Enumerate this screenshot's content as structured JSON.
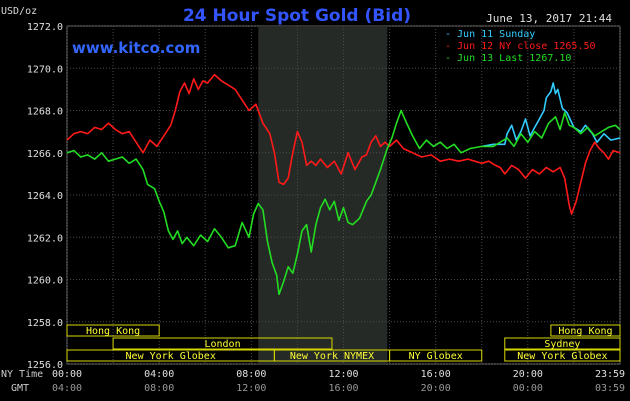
{
  "header": {
    "title": "24 Hour Spot Gold (Bid)",
    "unit": "USD/oz",
    "datetime": "June 13, 2017 21:44",
    "website": "www.kitco.com"
  },
  "legend": [
    {
      "label": "Jun 11 Sunday",
      "color": "#33ccff"
    },
    {
      "label": "Jun 12 NY close 1265.50",
      "color": "#ff1a1a"
    },
    {
      "label": "Jun 13 Last 1267.10",
      "color": "#22dd22"
    }
  ],
  "time_labels": {
    "ny_time_label": "NY Time",
    "gmt_label": "GMT"
  },
  "sessions": [
    {
      "name": "Hong Kong",
      "start": 0,
      "end": 4,
      "row": 0
    },
    {
      "name": "London",
      "start": 2,
      "end": 11.5,
      "row": 1
    },
    {
      "name": "New York Globex",
      "start": 0,
      "end": 9,
      "row": 2
    },
    {
      "name": "New York NYMEX",
      "start": 9,
      "end": 14,
      "row": 2
    },
    {
      "name": "NY Globex",
      "start": 14,
      "end": 18,
      "row": 2
    },
    {
      "name": "Hong Kong",
      "start": 21,
      "end": 24,
      "row": 0
    },
    {
      "name": "Sydney",
      "start": 19,
      "end": 24,
      "row": 1
    },
    {
      "name": "New York Globex",
      "start": 19,
      "end": 24,
      "row": 2
    }
  ],
  "chart_data": {
    "type": "line",
    "title": "24 Hour Spot Gold (Bid)",
    "ylabel": "USD/oz",
    "xlim": [
      0,
      24
    ],
    "ylim": [
      1256,
      1272
    ],
    "yticks": [
      1256,
      1258,
      1260,
      1262,
      1264,
      1266,
      1268,
      1270,
      1272
    ],
    "y_tick_labels": [
      "1256.0",
      "1258.0",
      "1260.0",
      "1262.0",
      "1264.0",
      "1266.0",
      "1268.0",
      "1270.0",
      "1272.0"
    ],
    "xticks": [
      0,
      4,
      8,
      12,
      16,
      20,
      24
    ],
    "x_tick_labels_ny": [
      "00:00",
      "04:00",
      "08:00",
      "12:00",
      "16:00",
      "20:00",
      "23:59"
    ],
    "x_tick_labels_gmt": [
      "04:00",
      "08:00",
      "12:00",
      "16:00",
      "20:00",
      "00:00",
      "03:59"
    ],
    "shaded_region": [
      8.3,
      13.9
    ],
    "grid": true,
    "series": [
      {
        "name": "Jun 11 Sunday",
        "color": "#33ccff",
        "points": [
          [
            18.0,
            1266.3
          ],
          [
            18.5,
            1266.4
          ],
          [
            19.0,
            1266.4
          ],
          [
            19.1,
            1266.9
          ],
          [
            19.3,
            1267.3
          ],
          [
            19.5,
            1266.6
          ],
          [
            19.7,
            1267.0
          ],
          [
            19.9,
            1267.6
          ],
          [
            20.1,
            1266.8
          ],
          [
            20.3,
            1267.2
          ],
          [
            20.5,
            1267.6
          ],
          [
            20.7,
            1268.0
          ],
          [
            20.8,
            1268.6
          ],
          [
            21.0,
            1268.9
          ],
          [
            21.1,
            1269.3
          ],
          [
            21.2,
            1268.8
          ],
          [
            21.3,
            1269.0
          ],
          [
            21.5,
            1268.1
          ],
          [
            21.7,
            1267.9
          ],
          [
            22.0,
            1267.2
          ],
          [
            22.3,
            1267.0
          ],
          [
            22.5,
            1267.3
          ],
          [
            22.8,
            1266.9
          ],
          [
            23.0,
            1266.5
          ],
          [
            23.3,
            1266.9
          ],
          [
            23.6,
            1266.6
          ],
          [
            24.0,
            1266.7
          ]
        ]
      },
      {
        "name": "Jun 12 NY close 1265.50",
        "color": "#ff1a1a",
        "points": [
          [
            0.0,
            1266.6
          ],
          [
            0.3,
            1266.9
          ],
          [
            0.6,
            1267.0
          ],
          [
            0.9,
            1266.9
          ],
          [
            1.2,
            1267.2
          ],
          [
            1.5,
            1267.1
          ],
          [
            1.8,
            1267.4
          ],
          [
            2.1,
            1267.1
          ],
          [
            2.4,
            1266.9
          ],
          [
            2.7,
            1267.0
          ],
          [
            3.0,
            1266.5
          ],
          [
            3.3,
            1266.0
          ],
          [
            3.6,
            1266.6
          ],
          [
            3.9,
            1266.3
          ],
          [
            4.2,
            1266.8
          ],
          [
            4.5,
            1267.3
          ],
          [
            4.7,
            1268.0
          ],
          [
            4.9,
            1268.9
          ],
          [
            5.1,
            1269.3
          ],
          [
            5.3,
            1268.8
          ],
          [
            5.5,
            1269.5
          ],
          [
            5.7,
            1269.0
          ],
          [
            5.9,
            1269.4
          ],
          [
            6.1,
            1269.3
          ],
          [
            6.4,
            1269.7
          ],
          [
            6.7,
            1269.4
          ],
          [
            7.0,
            1269.2
          ],
          [
            7.3,
            1269.0
          ],
          [
            7.6,
            1268.5
          ],
          [
            7.9,
            1268.0
          ],
          [
            8.2,
            1268.3
          ],
          [
            8.5,
            1267.4
          ],
          [
            8.8,
            1266.9
          ],
          [
            9.0,
            1266.0
          ],
          [
            9.2,
            1264.6
          ],
          [
            9.4,
            1264.5
          ],
          [
            9.6,
            1264.8
          ],
          [
            9.8,
            1266.0
          ],
          [
            10.0,
            1267.0
          ],
          [
            10.2,
            1266.5
          ],
          [
            10.4,
            1265.4
          ],
          [
            10.6,
            1265.6
          ],
          [
            10.8,
            1265.4
          ],
          [
            11.0,
            1265.7
          ],
          [
            11.3,
            1265.3
          ],
          [
            11.6,
            1265.6
          ],
          [
            11.9,
            1265.0
          ],
          [
            12.2,
            1266.0
          ],
          [
            12.5,
            1265.2
          ],
          [
            12.8,
            1265.8
          ],
          [
            13.0,
            1265.9
          ],
          [
            13.2,
            1266.5
          ],
          [
            13.4,
            1266.8
          ],
          [
            13.6,
            1266.3
          ],
          [
            13.8,
            1266.5
          ],
          [
            14.0,
            1266.3
          ],
          [
            14.3,
            1266.6
          ],
          [
            14.6,
            1266.2
          ],
          [
            15.0,
            1266.0
          ],
          [
            15.4,
            1265.8
          ],
          [
            15.8,
            1265.9
          ],
          [
            16.2,
            1265.6
          ],
          [
            16.6,
            1265.7
          ],
          [
            17.0,
            1265.6
          ],
          [
            17.4,
            1265.7
          ],
          [
            18.0,
            1265.5
          ],
          [
            18.3,
            1265.6
          ],
          [
            18.6,
            1265.4
          ],
          [
            18.8,
            1265.3
          ],
          [
            19.0,
            1265.0
          ],
          [
            19.3,
            1265.4
          ],
          [
            19.6,
            1265.2
          ],
          [
            19.9,
            1264.8
          ],
          [
            20.2,
            1265.2
          ],
          [
            20.5,
            1265.0
          ],
          [
            20.8,
            1265.3
          ],
          [
            21.1,
            1265.1
          ],
          [
            21.4,
            1265.3
          ],
          [
            21.6,
            1264.8
          ],
          [
            21.8,
            1263.5
          ],
          [
            21.9,
            1263.1
          ],
          [
            22.1,
            1263.7
          ],
          [
            22.3,
            1264.6
          ],
          [
            22.5,
            1265.5
          ],
          [
            22.7,
            1266.1
          ],
          [
            22.9,
            1266.5
          ],
          [
            23.1,
            1266.2
          ],
          [
            23.3,
            1266.0
          ],
          [
            23.5,
            1265.7
          ],
          [
            23.7,
            1266.1
          ],
          [
            24.0,
            1266.0
          ]
        ]
      },
      {
        "name": "Jun 13 Last 1267.10",
        "color": "#22dd22",
        "points": [
          [
            0.0,
            1266.0
          ],
          [
            0.3,
            1266.1
          ],
          [
            0.6,
            1265.8
          ],
          [
            0.9,
            1265.9
          ],
          [
            1.2,
            1265.7
          ],
          [
            1.5,
            1266.0
          ],
          [
            1.8,
            1265.6
          ],
          [
            2.1,
            1265.7
          ],
          [
            2.4,
            1265.8
          ],
          [
            2.7,
            1265.5
          ],
          [
            3.0,
            1265.7
          ],
          [
            3.3,
            1265.2
          ],
          [
            3.5,
            1264.5
          ],
          [
            3.8,
            1264.3
          ],
          [
            4.0,
            1263.7
          ],
          [
            4.2,
            1263.2
          ],
          [
            4.4,
            1262.3
          ],
          [
            4.6,
            1261.9
          ],
          [
            4.8,
            1262.3
          ],
          [
            5.0,
            1261.7
          ],
          [
            5.2,
            1262.0
          ],
          [
            5.5,
            1261.6
          ],
          [
            5.8,
            1262.1
          ],
          [
            6.1,
            1261.8
          ],
          [
            6.4,
            1262.4
          ],
          [
            6.7,
            1262.0
          ],
          [
            7.0,
            1261.5
          ],
          [
            7.3,
            1261.6
          ],
          [
            7.6,
            1262.7
          ],
          [
            7.9,
            1262.0
          ],
          [
            8.1,
            1263.1
          ],
          [
            8.3,
            1263.6
          ],
          [
            8.5,
            1263.3
          ],
          [
            8.7,
            1261.8
          ],
          [
            8.9,
            1260.8
          ],
          [
            9.1,
            1260.2
          ],
          [
            9.2,
            1259.3
          ],
          [
            9.4,
            1259.9
          ],
          [
            9.6,
            1260.6
          ],
          [
            9.8,
            1260.3
          ],
          [
            10.0,
            1261.2
          ],
          [
            10.2,
            1262.3
          ],
          [
            10.4,
            1262.6
          ],
          [
            10.6,
            1261.3
          ],
          [
            10.8,
            1262.6
          ],
          [
            11.0,
            1263.4
          ],
          [
            11.2,
            1263.8
          ],
          [
            11.4,
            1263.3
          ],
          [
            11.6,
            1263.7
          ],
          [
            11.8,
            1262.8
          ],
          [
            12.0,
            1263.4
          ],
          [
            12.2,
            1262.7
          ],
          [
            12.4,
            1262.6
          ],
          [
            12.7,
            1262.9
          ],
          [
            13.0,
            1263.7
          ],
          [
            13.2,
            1264.0
          ],
          [
            13.4,
            1264.6
          ],
          [
            13.6,
            1265.2
          ],
          [
            13.9,
            1266.2
          ],
          [
            14.1,
            1266.7
          ],
          [
            14.3,
            1267.4
          ],
          [
            14.5,
            1268.0
          ],
          [
            14.7,
            1267.5
          ],
          [
            15.0,
            1266.8
          ],
          [
            15.3,
            1266.2
          ],
          [
            15.6,
            1266.6
          ],
          [
            15.9,
            1266.3
          ],
          [
            16.2,
            1266.5
          ],
          [
            16.5,
            1266.2
          ],
          [
            16.8,
            1266.4
          ],
          [
            17.1,
            1266.0
          ],
          [
            17.5,
            1266.2
          ],
          [
            18.0,
            1266.3
          ],
          [
            18.5,
            1266.3
          ],
          [
            18.8,
            1266.5
          ],
          [
            19.1,
            1266.7
          ],
          [
            19.4,
            1266.3
          ],
          [
            19.7,
            1266.9
          ],
          [
            20.0,
            1266.5
          ],
          [
            20.3,
            1267.0
          ],
          [
            20.6,
            1266.7
          ],
          [
            20.9,
            1267.4
          ],
          [
            21.2,
            1267.7
          ],
          [
            21.4,
            1267.1
          ],
          [
            21.6,
            1267.9
          ],
          [
            21.8,
            1267.3
          ],
          [
            22.0,
            1267.2
          ],
          [
            22.3,
            1266.9
          ],
          [
            22.6,
            1267.2
          ],
          [
            22.9,
            1266.8
          ],
          [
            23.2,
            1267.0
          ],
          [
            23.5,
            1267.2
          ],
          [
            23.8,
            1267.3
          ],
          [
            24.0,
            1267.1
          ]
        ]
      }
    ]
  }
}
